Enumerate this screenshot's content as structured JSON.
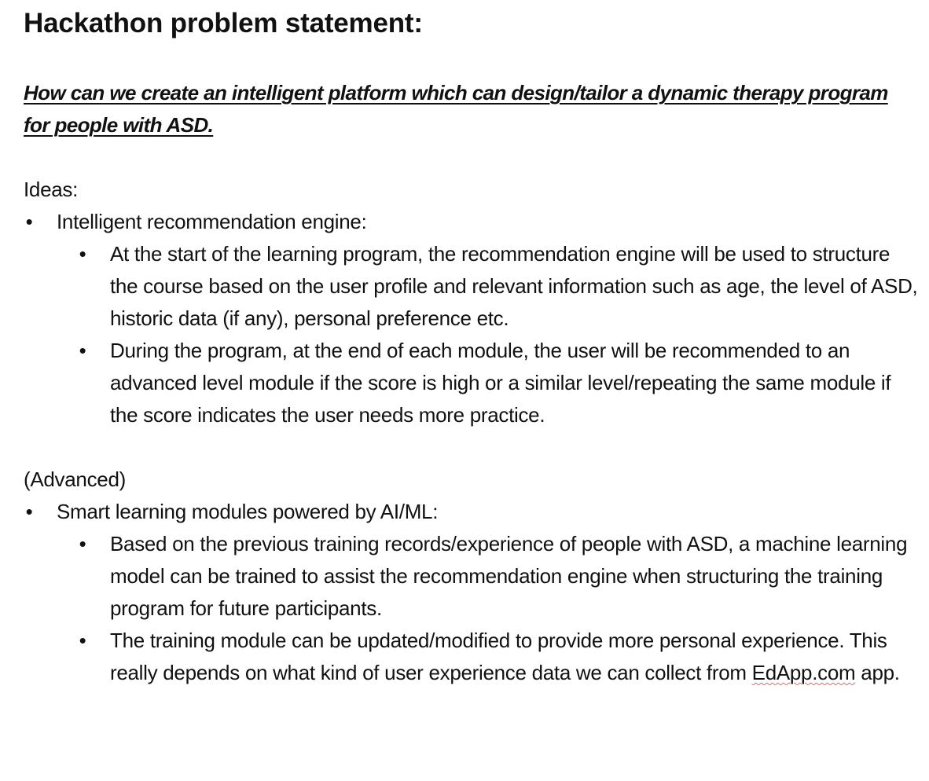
{
  "document": {
    "title": "Hackathon problem statement:",
    "question": "How can we create an intelligent platform which can design/tailor a dynamic therapy program for people with ASD.",
    "ideas_label": "Ideas:",
    "ideas": {
      "heading": "Intelligent recommendation engine:",
      "points": [
        "At the start of the learning program, the recommendation engine will be used to structure the course based on the user profile and relevant information such as age, the level of ASD, historic data (if any), personal preference etc.",
        "During the program, at the end of each module, the user will be recommended to an advanced level module if the score is high or a similar level/repeating the same module if the score indicates the user needs more practice."
      ]
    },
    "advanced_label": "(Advanced)",
    "advanced": {
      "heading": "Smart learning modules powered by AI/ML:",
      "points": [
        "Based on the previous training records/experience of people with ASD, a machine learning model can be trained to assist the recommendation engine when structuring the training program for future participants."
      ],
      "last_point_before": "The training module can be updated/modified to provide more personal experience. This really depends on what kind of user experience data we can collect from ",
      "last_point_link": "EdApp.com",
      "last_point_after": " app."
    },
    "bullet_glyph": "•",
    "colors": {
      "text": "#111111",
      "spellcheck_underline": "#e06a6a"
    }
  }
}
